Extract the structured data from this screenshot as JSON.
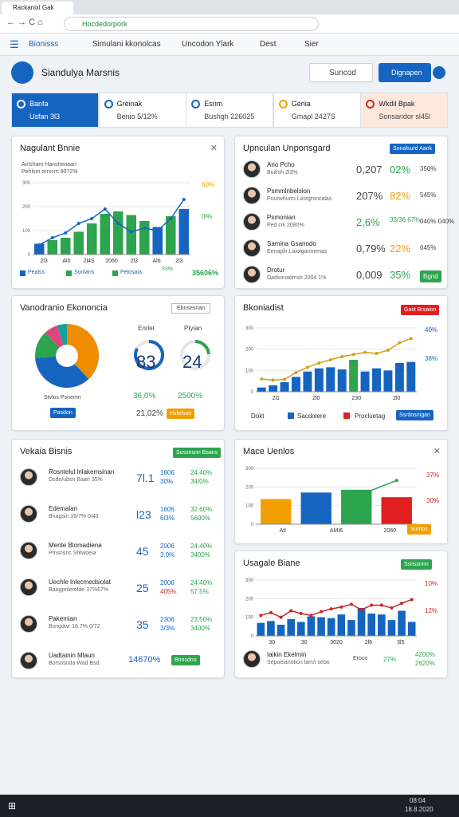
{
  "browser": {
    "tab": "Rackanixl Gak",
    "address": "Hocdedorpork",
    "bookmarks": [
      "Bionisss",
      "Simulani kkonolcas",
      "Uncodon Ylark",
      "Dest",
      "Sier"
    ]
  },
  "header": {
    "title": "Siandulya Marsnis",
    "search": "Suncod",
    "button": "Dignapen"
  },
  "kpis": [
    {
      "title": "Banfa",
      "sub": "Usfan 3l3"
    },
    {
      "title": "Greinak",
      "sub": "Benio 5/12%"
    },
    {
      "title": "Esrim",
      "sub": "Bushgh 226025"
    },
    {
      "title": "Genia",
      "sub": "Gmapl 2427S"
    },
    {
      "title": "Wkdil Bpak",
      "sub": "Sonsandor sl45l"
    }
  ],
  "panel1": {
    "title": "Nagulant Bnnie",
    "subtitle": "Airlsham Hanshenaan",
    "note": "Pehlsm orrscm 9072%",
    "ann_top": "60%",
    "ann_mid": "0l%",
    "chart": {
      "ylim": [
        0,
        300
      ],
      "yticks": [
        0,
        100,
        200,
        300
      ],
      "bars": {
        "values": [
          45,
          60,
          70,
          95,
          130,
          170,
          180,
          165,
          140,
          115,
          160,
          190
        ],
        "colors": [
          "#1565c0",
          "#2da44e",
          "#2da44e",
          "#2da44e",
          "#2da44e",
          "#2da44e",
          "#2da44e",
          "#2da44e",
          "#2da44e",
          "#1565c0",
          "#2da44e",
          "#1565c0"
        ]
      },
      "line": {
        "values": [
          40,
          70,
          90,
          130,
          150,
          190,
          130,
          95,
          110,
          100,
          150,
          230
        ],
        "color": "#1565c0"
      },
      "xlabels": [
        "2l3",
        "Al0",
        "2l4S",
        "2060",
        "2l3",
        "Al6",
        "2l3"
      ]
    },
    "legend": [
      "Pealss",
      "Sonlans",
      "Pelosaia"
    ],
    "stat1": "33%",
    "stat2": "35606%"
  },
  "panel2": {
    "title": "Upnculan Unponsgard",
    "button": "Sonalsurd Aank",
    "rows": [
      {
        "name": "Ario Pcho",
        "sub": "Buil/sh 2l3%",
        "v1": "0,207",
        "v2": "02%",
        "v3": "350%"
      },
      {
        "name": "Psmmlnbelsion",
        "sub": "Puurwhurm Lastgroncalas",
        "v1": "207%",
        "v2": "82%",
        "v3": "545%"
      },
      {
        "name": "Psmonian",
        "sub": "Ped cik 2080%",
        "v1": "2,6%",
        "v2": "33/36 67%",
        "v3": "040% 040%"
      },
      {
        "name": "Samina Gsanodo",
        "sub": "Eenaplir Laiotganmenas",
        "v1": "0,79%",
        "v2": "22%",
        "v3": "645%"
      },
      {
        "name": "Drotur",
        "sub": "Dadsonadmsk 2004 1%",
        "v1": "0,009",
        "v2": "35%",
        "v3": "Bgnd"
      }
    ]
  },
  "panel3": {
    "title": "Vanodranio Ekononcia",
    "dropdown": "Ebnsesnan",
    "legend": "Stvlos Psnemn",
    "button": "Pasdon",
    "pie": {
      "values": [
        38,
        36,
        14,
        7,
        5
      ],
      "colors": [
        "#f08c00",
        "#1565c0",
        "#2da44e",
        "#e0457b",
        "#16a0a0"
      ]
    },
    "gauges": [
      {
        "label": "Enrlet",
        "value": 83,
        "color": "#1565c0"
      },
      {
        "label": "Ptyian",
        "value": 24,
        "color": "#2da44e"
      }
    ],
    "stats": [
      "36,0%",
      "2500%",
      "21,02%"
    ],
    "pill": "Hsfelson"
  },
  "panel4": {
    "title": "Bkoniadist",
    "button": "Gast Brsaion",
    "ann_top": "40%",
    "ann_mid": "38%",
    "chart": {
      "ylim": [
        0,
        300
      ],
      "yticks": [
        0,
        100,
        200,
        300
      ],
      "bars": {
        "values": [
          20,
          30,
          45,
          70,
          95,
          110,
          115,
          105,
          150,
          95,
          110,
          100,
          135,
          140
        ],
        "colors": [
          "#1565c0",
          "#1565c0",
          "#1565c0",
          "#1565c0",
          "#1565c0",
          "#1565c0",
          "#1565c0",
          "#1565c0",
          "#2da44e",
          "#1565c0",
          "#1565c0",
          "#1565c0",
          "#1565c0",
          "#1565c0"
        ]
      },
      "line": {
        "values": [
          60,
          55,
          58,
          90,
          115,
          135,
          150,
          165,
          175,
          185,
          180,
          195,
          230,
          250
        ],
        "color": "#d4a017"
      },
      "xlabels": [
        "2l1",
        "2l0",
        "230",
        "2l0"
      ]
    },
    "legend": [
      "Dokt",
      "Sacdolere",
      "Procluetag"
    ],
    "legend_button": "Ssrdosnigan"
  },
  "panel5": {
    "title": "Vekaia Bisnis",
    "button": "Sossnsnn Bsans",
    "rows": [
      {
        "name": "Rosntelul lnlakemsinan",
        "sub": "Dsdo/ubsn Baan 35%",
        "num": "7l.1",
        "s": [
          "1806",
          "30%",
          "24.40%",
          "34/0%"
        ]
      },
      {
        "name": "Edemalan",
        "sub": "Bnagsin 16/7% 0/43",
        "num": "l23",
        "s": [
          "1606",
          "6l3%",
          "32.60%",
          "5600%"
        ]
      },
      {
        "name": "Mente Blomadiena",
        "sub": "Pmsnsnc Shtwoeia",
        "num": "45",
        "s": [
          "2006",
          "3.0%",
          "24.40%",
          "3400%"
        ]
      },
      {
        "name": "Uechle lnlecmedsiolat",
        "sub": "Baagpnlerolde 37%67%",
        "num": "25",
        "s": [
          "2006",
          "405%",
          "24.40%",
          "57.5%"
        ]
      },
      {
        "name": "Pakemian",
        "sub": "Bsngdwr 16.7% 0/72",
        "num": "35",
        "s": [
          "2306",
          "3/3%",
          "23.50%",
          "3400%"
        ]
      },
      {
        "name": "Uadtainin Mlaun",
        "sub": "Borsosoda Wad Bsd",
        "num": "14670%",
        "s": [
          "Bnnsdno"
        ]
      }
    ]
  },
  "panel6": {
    "title": "Mace Uenlos",
    "ann_top": "37%",
    "ann_mid": "30%",
    "button": "Suntos",
    "chart": {
      "ylim": [
        0,
        300
      ],
      "yticks": [
        0,
        100,
        200,
        300
      ],
      "bars": {
        "values": [
          135,
          170,
          185,
          145
        ],
        "colors": [
          "#f0a000",
          "#1565c0",
          "#2da44e",
          "#e02020"
        ]
      },
      "line": {
        "values": [
          null,
          null,
          150,
          235
        ],
        "color": "#2da44e"
      },
      "xlabels": [
        "Atl",
        "AMI6",
        "2060"
      ]
    }
  },
  "panel7": {
    "title": "Usagale Biane",
    "button": "Ssnssnnn",
    "ann_top": "10%",
    "ann_mid": "12%",
    "chart": {
      "ylim": [
        0,
        300
      ],
      "yticks": [
        0,
        100,
        200,
        300
      ],
      "bars": {
        "values": [
          70,
          80,
          60,
          90,
          75,
          105,
          100,
          95,
          115,
          85,
          150,
          120,
          115,
          85,
          135,
          75
        ],
        "colors": [
          "#1565c0"
        ]
      },
      "line": {
        "values": [
          110,
          125,
          100,
          135,
          120,
          110,
          130,
          145,
          155,
          170,
          140,
          165,
          165,
          150,
          175,
          195
        ],
        "color": "#c62828"
      },
      "xlabels": [
        "30",
        "30",
        "3020",
        "2l6",
        "3l5"
      ]
    },
    "footer": {
      "name": "Iaikin Ekelmin",
      "sub": "Sepoeianotion lam/i sebo",
      "tag": "Eroco",
      "v1": "27%",
      "v2": "4200%",
      "v3": "2620%"
    }
  },
  "taskbar": {
    "time": "08:04",
    "date": "18.8.2020"
  }
}
